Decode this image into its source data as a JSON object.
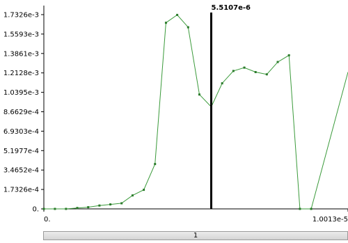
{
  "chart_data": {
    "type": "line",
    "x_tick_labels": [
      "0.",
      "1.0013e-5"
    ],
    "xlim": [
      0,
      1.0013e-05
    ],
    "y_tick_labels": [
      "1.7326e-3",
      "1.5593e-3",
      "1.3861e-3",
      "1.2128e-3",
      "1.0395e-3",
      "8.6629e-4",
      "6.9303e-4",
      "5.1977e-4",
      "3.4652e-4",
      "1.7326e-4",
      "0."
    ],
    "ylim": [
      0,
      0.0017326
    ],
    "grid": false,
    "series": [
      {
        "color": "#3a9a3a",
        "x": [
          0,
          3.65e-07,
          7.3e-07,
          1.1e-06,
          1.46e-06,
          1.83e-06,
          2.19e-06,
          2.56e-06,
          2.92e-06,
          3.29e-06,
          3.66e-06,
          4.02e-06,
          4.39e-06,
          4.75e-06,
          5.12e-06,
          5.5107e-06,
          5.87e-06,
          6.24e-06,
          6.6e-06,
          6.97e-06,
          7.34e-06,
          7.7e-06,
          8.07e-06,
          8.43e-06,
          8.8e-06
        ],
        "y": [
          0,
          0,
          0,
          8e-06,
          1.5e-05,
          3e-05,
          4e-05,
          5e-05,
          0.00012,
          0.00017,
          0.0004,
          0.00166,
          0.00173,
          0.00162,
          0.00102,
          0.00091,
          0.00112,
          0.00123,
          0.00126,
          0.00122,
          0.0012,
          0.00131,
          0.00137,
          0.0,
          0.0
        ]
      }
    ],
    "cursor": {
      "x": 5.5107e-06,
      "label": "5.5107e-6"
    }
  },
  "page_bar": {
    "label": "1"
  }
}
